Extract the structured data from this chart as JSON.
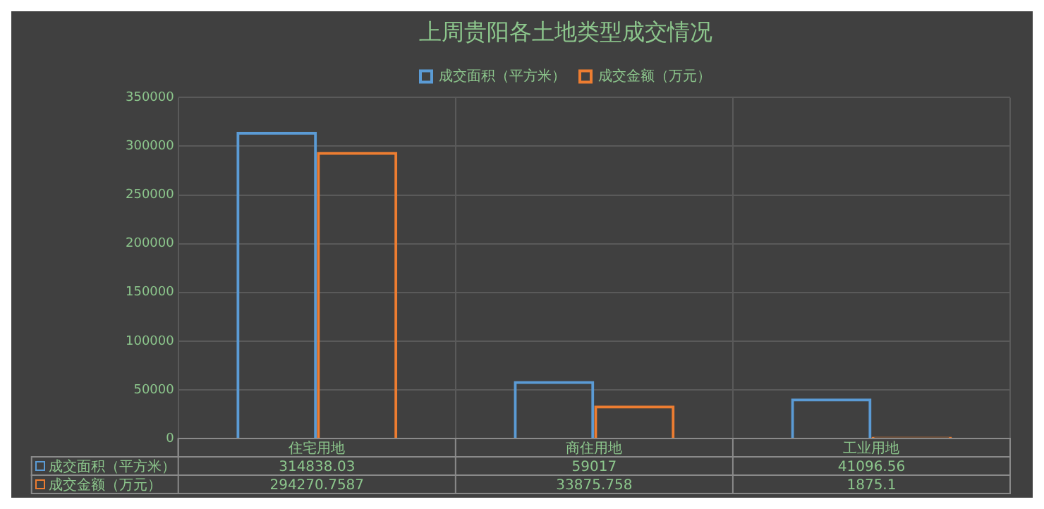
{
  "chart_data": {
    "type": "bar",
    "title": "上周贵阳各土地类型成交情况",
    "categories": [
      "住宅用地",
      "商住用地",
      "工业用地"
    ],
    "series": [
      {
        "name": "成交面积（平方米）",
        "color": "#5b9bd5",
        "values": [
          314838.03,
          59017,
          41096.56
        ]
      },
      {
        "name": "成交金额（万元）",
        "color": "#ed7d31",
        "values": [
          294270.7587,
          33875.758,
          1875.1
        ]
      }
    ],
    "ylim": [
      0,
      350000
    ],
    "yticks": [
      0,
      50000,
      100000,
      150000,
      200000,
      250000,
      300000,
      350000
    ],
    "grid": true,
    "legend": "top",
    "data_labels": true
  }
}
